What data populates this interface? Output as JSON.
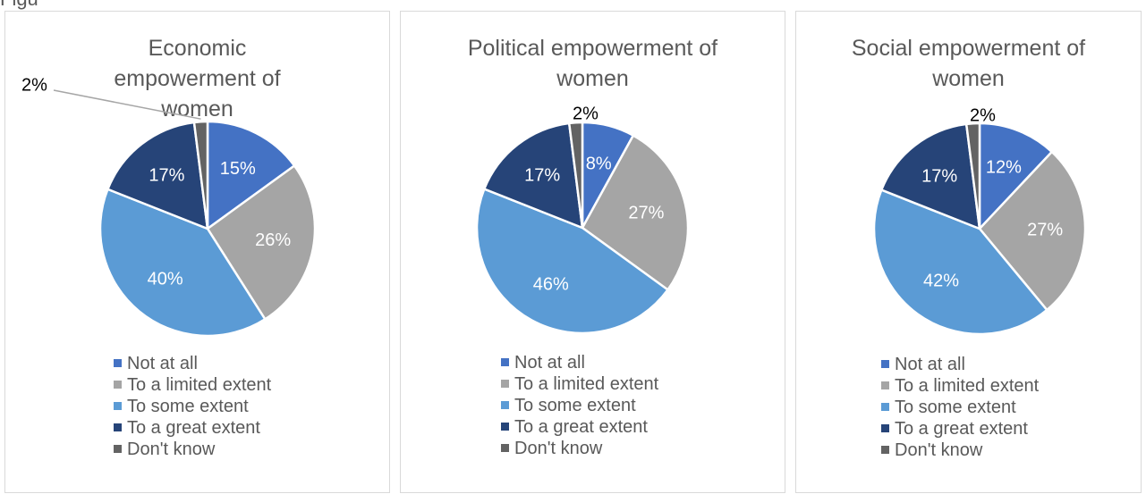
{
  "page": {
    "corner_text": "Figure"
  },
  "colors": {
    "not_at_all": "#4472c4",
    "limited": "#a5a5a5",
    "some": "#5b9bd5",
    "great": "#264478",
    "dont_know": "#636363",
    "label_dark": "#000000",
    "label_light": "#ffffff"
  },
  "chart_data": [
    {
      "type": "pie",
      "title": "Economic empowerment of women",
      "labels": [
        "Not at all",
        "To a limited extent",
        "To some extent",
        "To a great extent",
        "Don't know"
      ],
      "values": [
        15,
        26,
        40,
        17,
        2
      ],
      "data_labels": [
        "15%",
        "26%",
        "40%",
        "17%",
        "2%"
      ],
      "legend": "bottom"
    },
    {
      "type": "pie",
      "title": "Political empowerment of women",
      "labels": [
        "Not at all",
        "To a limited extent",
        "To some extent",
        "To a great extent",
        "Don't know"
      ],
      "values": [
        8,
        27,
        46,
        17,
        2
      ],
      "data_labels": [
        "8%",
        "27%",
        "46%",
        "17%",
        "2%"
      ],
      "legend": "bottom"
    },
    {
      "type": "pie",
      "title": "Social empowerment of women",
      "labels": [
        "Not at all",
        "To a limited extent",
        "To some extent",
        "To a great extent",
        "Don't know"
      ],
      "values": [
        12,
        27,
        42,
        17,
        2
      ],
      "data_labels": [
        "12%",
        "27%",
        "42%",
        "17%",
        "2%"
      ],
      "legend": "bottom"
    }
  ]
}
